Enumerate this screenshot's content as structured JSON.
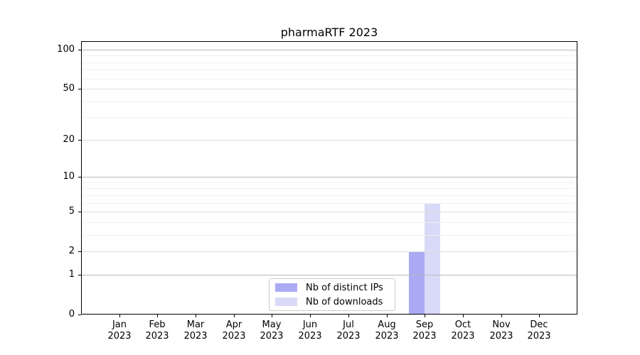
{
  "chart_data": {
    "type": "bar",
    "title": "pharmaRTF 2023",
    "categories": [
      "Jan\n2023",
      "Feb\n2023",
      "Mar\n2023",
      "Apr\n2023",
      "May\n2023",
      "Jun\n2023",
      "Jul\n2023",
      "Aug\n2023",
      "Sep\n2023",
      "Oct\n2023",
      "Nov\n2023",
      "Dec\n2023"
    ],
    "series": [
      {
        "name": "Nb of distinct IPs",
        "color": "#aaaaf5",
        "values": [
          0,
          0,
          0,
          0,
          0,
          0,
          0,
          0,
          2,
          0,
          0,
          0
        ]
      },
      {
        "name": "Nb of downloads",
        "color": "#d9d9f8",
        "values": [
          0,
          0,
          0,
          0,
          0,
          0,
          0,
          0,
          6,
          0,
          0,
          0
        ]
      }
    ],
    "yscale": "log1p",
    "ylim": [
      0,
      117
    ],
    "y_major_ticks": [
      0,
      1,
      2,
      5,
      10,
      20,
      50,
      100
    ],
    "y_minor_ticks": [
      3,
      4,
      6,
      7,
      8,
      9,
      30,
      40,
      60,
      70,
      80,
      90
    ],
    "xlabel": "",
    "ylabel": "",
    "grid": true,
    "legend_position": "lower center",
    "colors": {
      "grid_decade": "#b9b9b9",
      "grid_major": "#e0e0e0",
      "grid_minor": "#f2f2f2",
      "spine": "#000000",
      "background": "#ffffff"
    }
  }
}
